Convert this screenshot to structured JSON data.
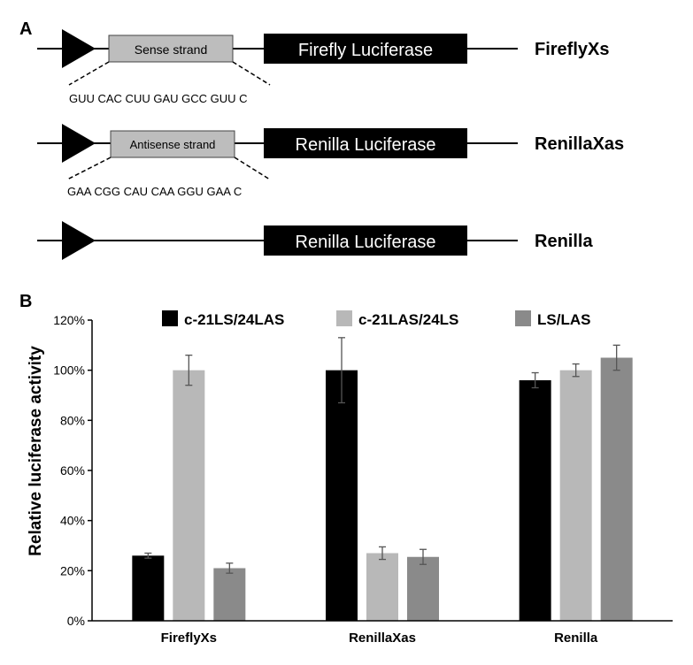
{
  "panel_a": {
    "letter": "A",
    "constructs": [
      {
        "name": "FireflyXs",
        "insert_label": "Sense strand",
        "gene_label": "Firefly Luciferase",
        "sequence": "GUU CAC CUU GAU GCC GUU C"
      },
      {
        "name": "RenillaXas",
        "insert_label": "Antisense strand",
        "gene_label": "Renilla Luciferase",
        "sequence": "GAA CGG CAU CAA GGU GAA C"
      },
      {
        "name": "Renilla",
        "insert_label": "",
        "gene_label": "Renilla Luciferase",
        "sequence": ""
      }
    ]
  },
  "panel_b": {
    "letter": "B"
  },
  "chart_data": {
    "type": "bar",
    "title": "",
    "xlabel": "",
    "ylabel": "Relative luciferase activity",
    "ylim": [
      0,
      120
    ],
    "yticks": [
      "0%",
      "20%",
      "40%",
      "60%",
      "80%",
      "100%",
      "120%"
    ],
    "categories": [
      "FireflyXs",
      "RenillaXas",
      "Renilla"
    ],
    "legend_position": "top",
    "grid": false,
    "series": [
      {
        "name": "c-21LS/24LAS",
        "color": "#000000",
        "values": [
          26,
          100,
          96
        ],
        "errors": [
          1,
          13,
          3
        ]
      },
      {
        "name": "c-21LAS/24LS",
        "color": "#b8b8b8",
        "values": [
          100,
          27,
          100
        ],
        "errors": [
          6,
          2.5,
          2.5
        ]
      },
      {
        "name": "LS/LAS",
        "color": "#8a8a8a",
        "values": [
          21,
          25.5,
          105
        ],
        "errors": [
          2,
          3,
          5
        ]
      }
    ]
  }
}
